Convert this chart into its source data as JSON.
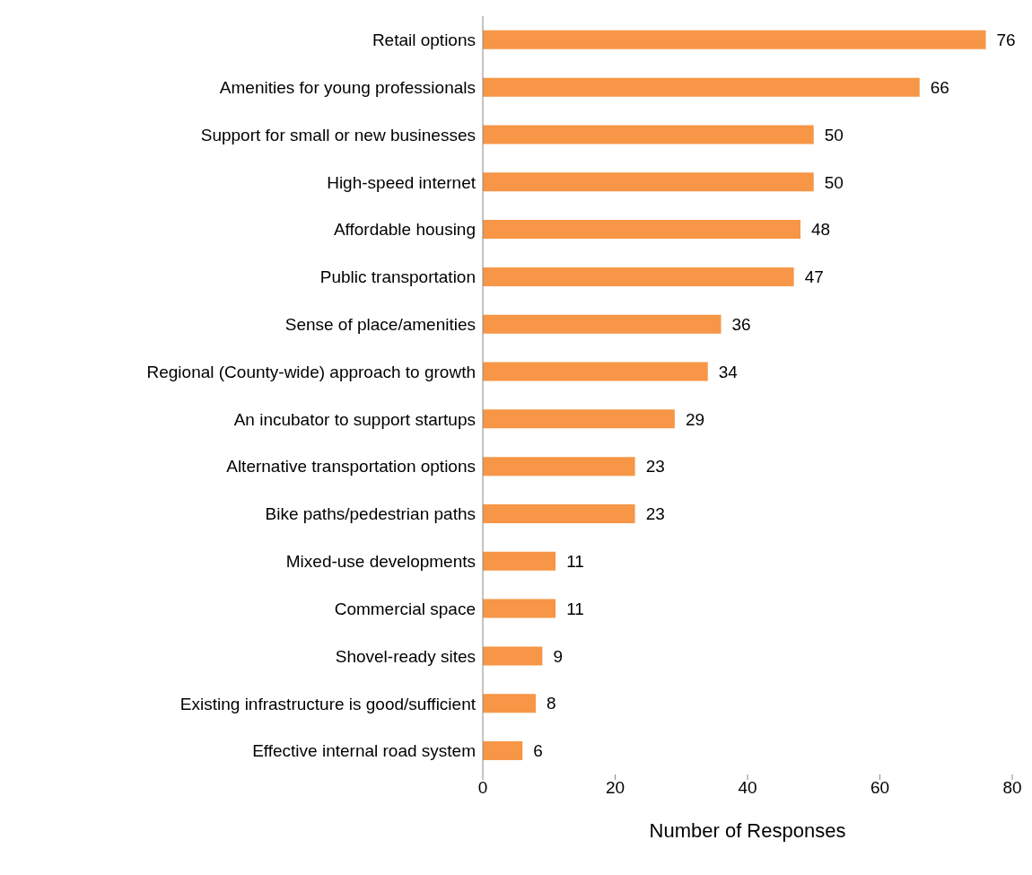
{
  "chart_data": {
    "type": "bar",
    "orientation": "horizontal",
    "xlabel": "Number of Responses",
    "categories": [
      "Retail options",
      "Amenities for young professionals",
      "Support for small or new businesses",
      "High-speed internet",
      "Affordable housing",
      "Public transportation",
      "Sense of place/amenities",
      "Regional (County-wide) approach to growth",
      "An incubator to support startups",
      "Alternative transportation options",
      "Bike paths/pedestrian paths",
      "Mixed-use developments",
      "Commercial space",
      "Shovel-ready sites",
      "Existing infrastructure is good/sufficient",
      "Effective internal road system"
    ],
    "values": [
      76,
      66,
      50,
      50,
      48,
      47,
      36,
      34,
      29,
      23,
      23,
      11,
      11,
      9,
      8,
      6
    ],
    "color": "#f79646",
    "xlim": [
      0,
      80
    ],
    "xticks": [
      0,
      20,
      40,
      60,
      80
    ],
    "grid": false,
    "data_labels": true,
    "legend": false
  }
}
